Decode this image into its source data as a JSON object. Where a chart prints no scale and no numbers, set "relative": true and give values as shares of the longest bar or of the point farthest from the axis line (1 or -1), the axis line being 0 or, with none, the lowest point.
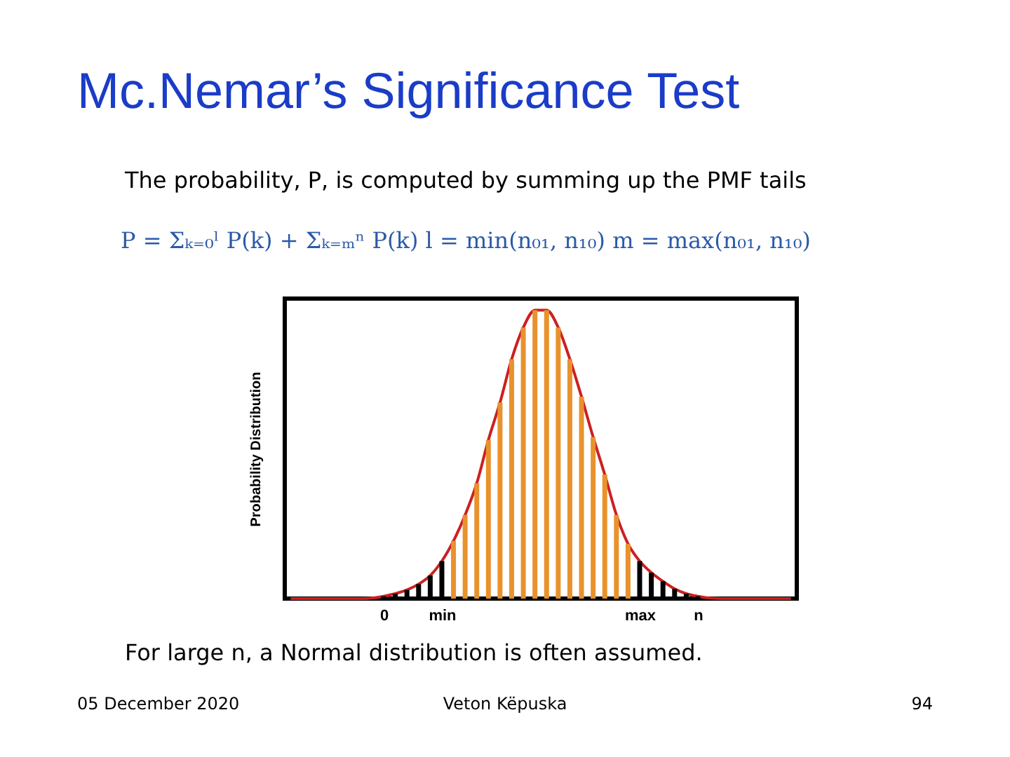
{
  "chart_data": {
    "type": "bar",
    "title": "Mc.Nemar’s Significance Test",
    "ylabel": "Probability Distribution",
    "relative": true,
    "categories": [
      null,
      null,
      null,
      null,
      null,
      null,
      null,
      null,
      "0",
      null,
      null,
      null,
      null,
      "min",
      null,
      null,
      null,
      null,
      null,
      null,
      null,
      null,
      null,
      null,
      null,
      null,
      null,
      null,
      null,
      null,
      "max",
      null,
      null,
      null,
      null,
      "n",
      null,
      null,
      null,
      null,
      null,
      null,
      null,
      null
    ],
    "tick_labels": "x",
    "grid": false,
    "series": [
      {
        "values": [
          null,
          null,
          null,
          null,
          null,
          null,
          null,
          null,
          0.008,
          0.017,
          0.03,
          0.05,
          0.08,
          0.13,
          0.2,
          0.29,
          0.4,
          0.55,
          0.68,
          0.83,
          0.94,
          1,
          1,
          0.94,
          0.83,
          0.7,
          0.56,
          0.43,
          0.29,
          0.19,
          0.13,
          0.09,
          0.06,
          0.034,
          0.017,
          0.008,
          null,
          null,
          null,
          null,
          null,
          null,
          null,
          null
        ],
        "colors": [
          "#000000",
          "#000000",
          "#000000",
          "#000000",
          "#000000",
          "#000000",
          "#000000",
          "#000000",
          "#000000",
          "#000000",
          "#000000",
          "#000000",
          "#000000",
          "#000000",
          "#e8922e",
          "#e8922e",
          "#e8922e",
          "#e8922e",
          "#e8922e",
          "#e8922e",
          "#e8922e",
          "#e8922e",
          "#e8922e",
          "#e8922e",
          "#e8922e",
          "#e8922e",
          "#e8922e",
          "#e8922e",
          "#e8922e",
          "#e8922e",
          "#000000",
          "#000000",
          "#000000",
          "#000000",
          "#000000",
          "#000000",
          "#000000",
          "#000000",
          "#000000",
          "#000000",
          "#000000",
          "#000000",
          "#000000",
          "#000000"
        ]
      },
      {
        "type": "line",
        "color": "#cc2020",
        "marker": "none",
        "line_style": "solid",
        "values": [
          0,
          0,
          0,
          0,
          0,
          0,
          0,
          0.002,
          0.008,
          0.017,
          0.03,
          0.05,
          0.08,
          0.13,
          0.2,
          0.29,
          0.4,
          0.55,
          0.68,
          0.83,
          0.94,
          1,
          1,
          0.94,
          0.83,
          0.7,
          0.56,
          0.43,
          0.29,
          0.19,
          0.13,
          0.09,
          0.06,
          0.034,
          0.017,
          0.008,
          0.002,
          0,
          0,
          0,
          0,
          0,
          0,
          0
        ]
      }
    ],
    "annotations": [
      "The probability, P, is computed by summing up the PMF tails",
      "P = Σₖ₌₀ˡ P(k) + Σₖ₌ₘⁿ P(k)     l = min(n₀₁, n₁₀)     m = max(n₀₁, n₁₀)",
      "For large n, a Normal distribution is often assumed.",
      "05 December 2020",
      "Veton Këpuska",
      "94"
    ]
  }
}
